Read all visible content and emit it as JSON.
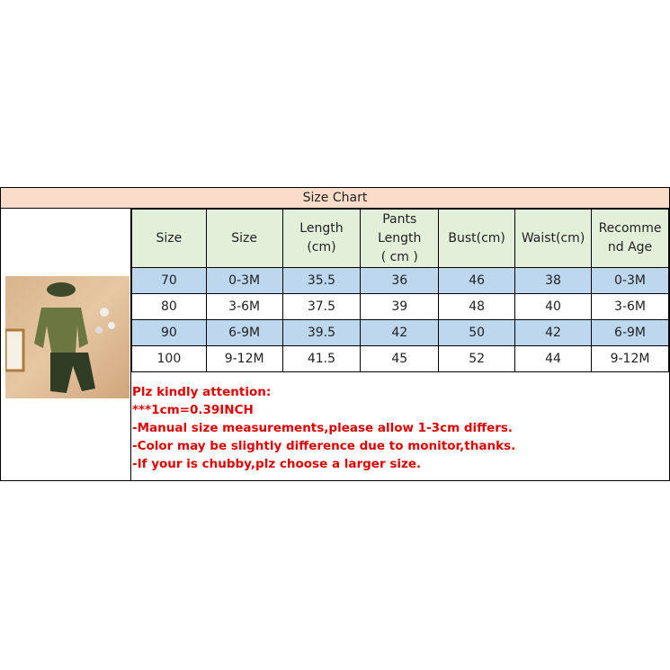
{
  "title": "Size Chart",
  "headers": [
    "Size",
    "Size",
    "Length\n(cm)",
    "Pants\nLength\n( cm )",
    "Bust(cm)",
    "Waist(cm)",
    "Recomme\nnd Age"
  ],
  "rows": [
    [
      "70",
      "0-3M",
      "35.5",
      "36",
      "46",
      "38",
      "0-3M"
    ],
    [
      "80",
      "3-6M",
      "37.5",
      "39",
      "48",
      "40",
      "3-6M"
    ],
    [
      "90",
      "6-9M",
      "39.5",
      "42",
      "50",
      "42",
      "6-9M"
    ],
    [
      "100",
      "9-12M",
      "41.5",
      "45",
      "52",
      "44",
      "9-12M"
    ]
  ],
  "notes": [
    "Plz kindly attention:",
    "***1cm=0.39INCH",
    "-Manual size measurements,please allow 1-3cm differs.",
    "-Color may be slightly difference due to monitor,thanks.",
    "-If your is chubby,plz choose a larger size."
  ],
  "colors": {
    "title_bg": "#fbdcc9",
    "header_bg": "#e2efd9",
    "stripe_bg": "#bdd7ee",
    "note_text": "#e00000"
  }
}
